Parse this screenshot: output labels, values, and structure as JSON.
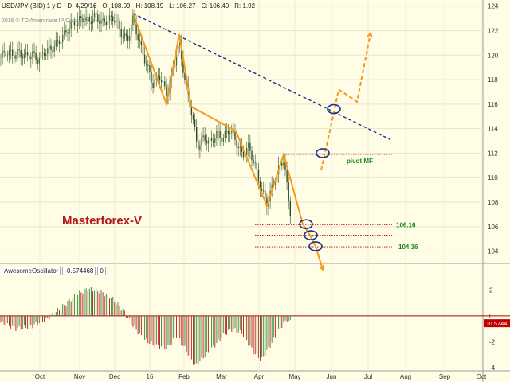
{
  "header": {
    "symbol": "USD/JPY (BID) 1 y D",
    "date": "D: 4/29/16",
    "open": "O: 108.09",
    "high": "H: 108.19",
    "low": "L: 106.27",
    "close": "C: 106.40",
    "range": "R: 1.92",
    "copyright": "2016 © TD Ameritrade IP Company, Inc."
  },
  "brand_label": "Masterforex-V",
  "indicator": {
    "name": "AwesomeOscillator",
    "value": "-0.574468",
    "param": "0",
    "last_value_tag": "-0.5744"
  },
  "colors": {
    "background": "#fffde6",
    "candle": "#4a6a3c",
    "pattern_line": "#f39a1e",
    "trend_line": "#1c2f8a",
    "level_line": "#c00000",
    "level_text": "#1a8a1a",
    "brand": "#b01818",
    "ao_up": "#3f8f3f",
    "ao_down": "#c03030",
    "circle": "#1c2f8a"
  },
  "annotations": {
    "level1": "106.16",
    "level2": "104.36",
    "pivot": "pivot MF"
  },
  "chart_data": {
    "type": "candlestick",
    "x_axis": {
      "ticks": [
        "Oct",
        "Nov",
        "Dec",
        "16",
        "Feb",
        "Mar",
        "Apr",
        "May",
        "Jun",
        "Jul",
        "Aug",
        "Sep",
        "Oct"
      ]
    },
    "y_axis": {
      "range": [
        103,
        124.5
      ],
      "ticks": [
        104,
        106,
        108,
        110,
        112,
        114,
        116,
        118,
        120,
        122,
        124
      ]
    },
    "price_series": [
      {
        "t": 0,
        "c": 119.8
      },
      {
        "t": 8,
        "c": 120.3
      },
      {
        "t": 16,
        "c": 120.0
      },
      {
        "t": 24,
        "c": 120.2
      },
      {
        "t": 32,
        "c": 119.9
      },
      {
        "t": 40,
        "c": 120.1
      },
      {
        "t": 48,
        "c": 119.6
      },
      {
        "t": 56,
        "c": 120.3
      },
      {
        "t": 64,
        "c": 120.5
      },
      {
        "t": 72,
        "c": 121.0
      },
      {
        "t": 80,
        "c": 121.6
      },
      {
        "t": 88,
        "c": 122.4
      },
      {
        "t": 96,
        "c": 122.7
      },
      {
        "t": 104,
        "c": 123.0
      },
      {
        "t": 112,
        "c": 122.8
      },
      {
        "t": 120,
        "c": 123.2
      },
      {
        "t": 128,
        "c": 122.6
      },
      {
        "t": 136,
        "c": 122.9
      },
      {
        "t": 144,
        "c": 123.0
      },
      {
        "t": 152,
        "c": 121.8
      },
      {
        "t": 160,
        "c": 121.2
      },
      {
        "t": 167,
        "c": 123.0
      },
      {
        "t": 176,
        "c": 120.8
      },
      {
        "t": 184,
        "c": 119.2
      },
      {
        "t": 192,
        "c": 117.6
      },
      {
        "t": 200,
        "c": 118.4
      },
      {
        "t": 209,
        "c": 116.8
      },
      {
        "t": 217,
        "c": 118.8
      },
      {
        "t": 225,
        "c": 121.0
      },
      {
        "t": 232,
        "c": 118.0
      },
      {
        "t": 240,
        "c": 115.5
      },
      {
        "t": 248,
        "c": 112.5
      },
      {
        "t": 256,
        "c": 113.3
      },
      {
        "t": 264,
        "c": 112.8
      },
      {
        "t": 272,
        "c": 113.6
      },
      {
        "t": 280,
        "c": 113.2
      },
      {
        "t": 288,
        "c": 114.0
      },
      {
        "t": 296,
        "c": 113.0
      },
      {
        "t": 304,
        "c": 111.8
      },
      {
        "t": 312,
        "c": 112.5
      },
      {
        "t": 320,
        "c": 111.0
      },
      {
        "t": 328,
        "c": 109.0
      },
      {
        "t": 335,
        "c": 107.9
      },
      {
        "t": 342,
        "c": 109.3
      },
      {
        "t": 349,
        "c": 110.6
      },
      {
        "t": 356,
        "c": 111.6
      },
      {
        "t": 362,
        "c": 108.2
      },
      {
        "t": 366,
        "c": 106.4
      }
    ],
    "pattern_lines": [
      {
        "style": "solid",
        "points": [
          [
            167,
            123.4
          ],
          [
            209,
            116.0
          ],
          [
            225,
            121.7
          ],
          [
            240,
            115.8
          ],
          [
            296,
            113.8
          ],
          [
            335,
            107.7
          ],
          [
            356,
            111.9
          ],
          [
            380,
            106.2
          ],
          [
            389,
            105.3
          ],
          [
            396,
            104.4
          ],
          [
            405,
            102.5
          ]
        ]
      },
      {
        "style": "dashed",
        "points": [
          [
            403,
            110.6
          ],
          [
            420,
            115.6
          ],
          [
            425,
            117.2
          ],
          [
            448,
            116.2
          ],
          [
            465,
            121.8
          ]
        ]
      }
    ],
    "trend_line": {
      "points": [
        [
          167,
          123.4
        ],
        [
          490,
          113.1
        ]
      ]
    },
    "levels": [
      {
        "price": 111.9,
        "from": 356,
        "to": 492,
        "label": "pivot MF"
      },
      {
        "price": 106.16,
        "from": 320,
        "to": 492,
        "label": "106.16"
      },
      {
        "price": 105.3,
        "from": 320,
        "to": 492,
        "label": ""
      },
      {
        "price": 104.36,
        "from": 320,
        "to": 492,
        "label": "104.36"
      }
    ],
    "circles": [
      {
        "t": 405,
        "price": 112.0
      },
      {
        "t": 419,
        "price": 115.6
      },
      {
        "t": 384,
        "price": 106.2
      },
      {
        "t": 390,
        "price": 105.3
      },
      {
        "t": 396,
        "price": 104.4
      }
    ],
    "oscillator": {
      "name": "AwesomeOscillator",
      "range": [
        -4,
        3
      ],
      "ticks": [
        2,
        0,
        -2,
        -4
      ],
      "series": [
        {
          "t": 0,
          "v": -0.5
        },
        {
          "t": 20,
          "v": -1.0
        },
        {
          "t": 40,
          "v": -0.8
        },
        {
          "t": 60,
          "v": -0.2
        },
        {
          "t": 80,
          "v": 0.8
        },
        {
          "t": 95,
          "v": 1.6
        },
        {
          "t": 110,
          "v": 2.1
        },
        {
          "t": 125,
          "v": 1.9
        },
        {
          "t": 140,
          "v": 1.4
        },
        {
          "t": 155,
          "v": 0.4
        },
        {
          "t": 165,
          "v": -0.6
        },
        {
          "t": 180,
          "v": -1.8
        },
        {
          "t": 195,
          "v": -2.3
        },
        {
          "t": 210,
          "v": -2.5
        },
        {
          "t": 222,
          "v": -1.5
        },
        {
          "t": 235,
          "v": -2.8
        },
        {
          "t": 245,
          "v": -3.9
        },
        {
          "t": 255,
          "v": -3.2
        },
        {
          "t": 268,
          "v": -2.4
        },
        {
          "t": 280,
          "v": -1.5
        },
        {
          "t": 292,
          "v": -1.0
        },
        {
          "t": 305,
          "v": -1.4
        },
        {
          "t": 318,
          "v": -2.8
        },
        {
          "t": 328,
          "v": -3.4
        },
        {
          "t": 340,
          "v": -2.2
        },
        {
          "t": 352,
          "v": -0.9
        },
        {
          "t": 360,
          "v": -0.3
        },
        {
          "t": 366,
          "v": -0.57
        }
      ]
    }
  }
}
